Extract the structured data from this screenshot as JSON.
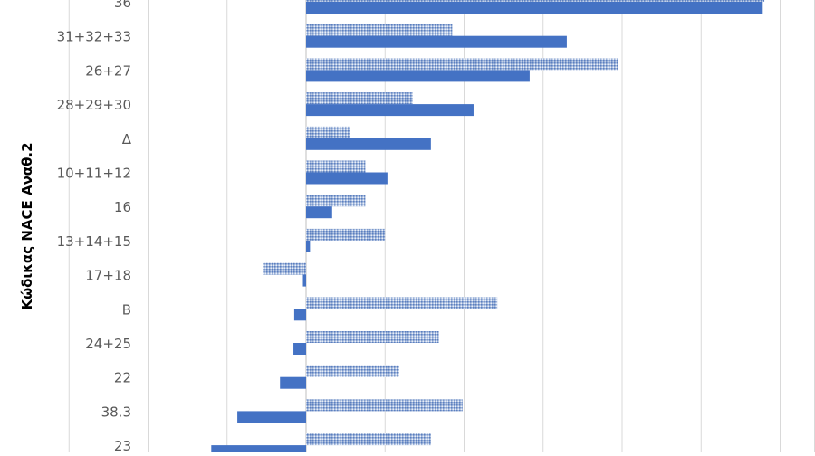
{
  "chart_data": {
    "type": "bar",
    "orientation": "horizontal",
    "ylabel": "Κώδικας NACE Αναθ.2",
    "categories": [
      "36",
      "31+32+33",
      "26+27",
      "28+29+30",
      "Δ",
      "10+11+12",
      "16",
      "13+14+15",
      "17+18",
      "B",
      "24+25",
      "22",
      "38.3",
      "23"
    ],
    "series": [
      {
        "pattern": "dotted",
        "color": "#9db3d9",
        "values": [
          5.8,
          1.85,
          3.95,
          1.35,
          0.55,
          0.75,
          0.75,
          1.0,
          -0.55,
          2.42,
          1.68,
          1.18,
          1.98,
          1.58
        ]
      },
      {
        "pattern": "solid",
        "color": "#4472c4",
        "values": [
          5.78,
          3.3,
          2.83,
          2.12,
          1.58,
          1.03,
          0.33,
          0.05,
          -0.04,
          -0.15,
          -0.16,
          -0.33,
          -0.87,
          -1.2
        ]
      }
    ],
    "xlim": [
      -4,
      6
    ],
    "grid": true,
    "legend": "none"
  }
}
